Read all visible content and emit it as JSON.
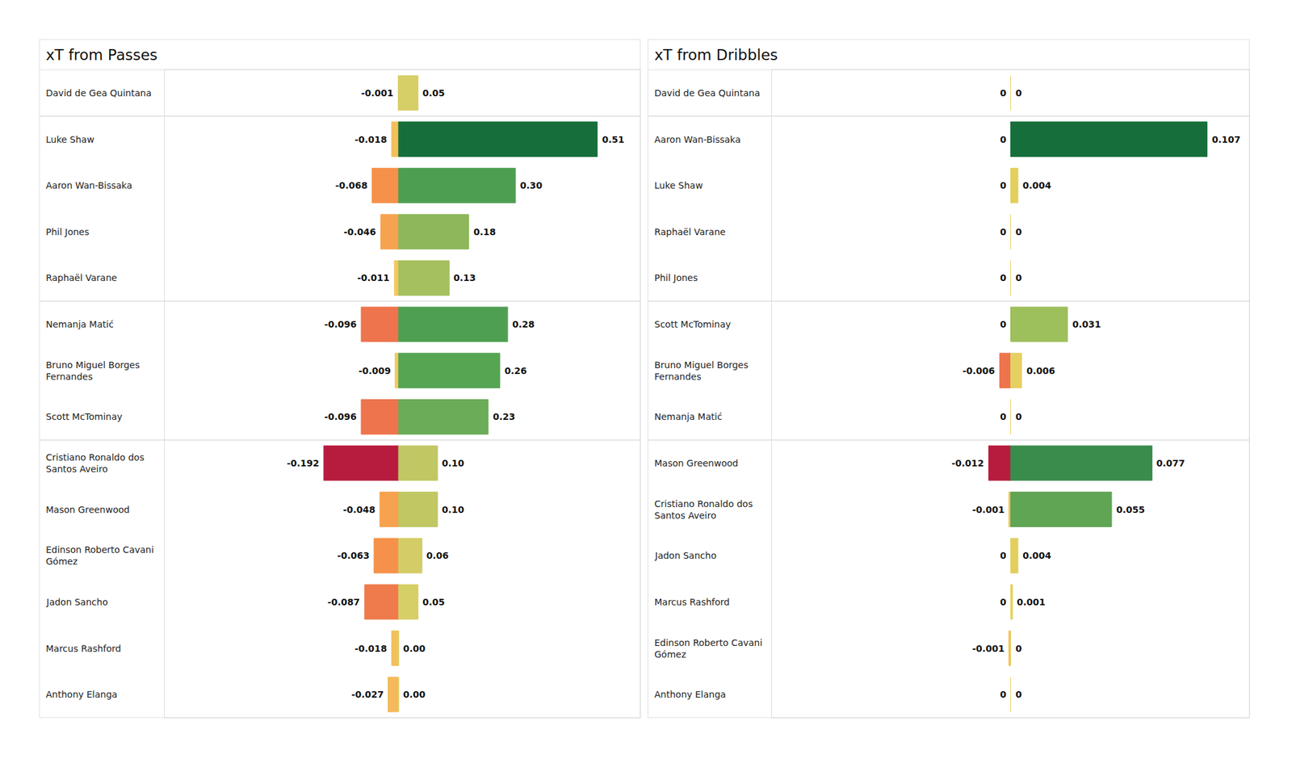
{
  "chart_data": [
    {
      "type": "bar",
      "title": "xT from Passes",
      "orientation": "horizontal",
      "categories": [
        "David de Gea Quintana",
        "Luke Shaw",
        "Aaron Wan-Bissaka",
        "Phil Jones",
        "Raphaël Varane",
        "Nemanja Matić",
        "Bruno Miguel Borges Fernandes",
        "Scott McTominay",
        "Cristiano Ronaldo dos Santos Aveiro",
        "Mason Greenwood",
        "Edinson Roberto Cavani Gómez",
        "Jadon Sancho",
        "Marcus Rashford",
        "Anthony Elanga"
      ],
      "series": [
        {
          "values": [
            -0.001,
            -0.018,
            -0.068,
            -0.046,
            -0.011,
            -0.096,
            -0.009,
            -0.096,
            -0.192,
            -0.048,
            -0.063,
            -0.087,
            -0.018,
            -0.027
          ],
          "value_labels": [
            "-0.001",
            "-0.018",
            "-0.068",
            "-0.046",
            "-0.011",
            "-0.096",
            "-0.009",
            "-0.096",
            "-0.192",
            "-0.048",
            "-0.063",
            "-0.087",
            "-0.018",
            "-0.027"
          ],
          "colors": [
            "#d6ce66",
            "#f2c05a",
            "#f5914a",
            "#f6a24f",
            "#f3c960",
            "#ee744d",
            "#f3c960",
            "#ee744d",
            "#b71c3e",
            "#f6a24f",
            "#f5914a",
            "#ef7a4b",
            "#f2c05a",
            "#f4b95a"
          ]
        },
        {
          "values": [
            0.05,
            0.51,
            0.3,
            0.18,
            0.13,
            0.28,
            0.26,
            0.23,
            0.1,
            0.1,
            0.06,
            0.05,
            0.0,
            0.0
          ],
          "value_labels": [
            "0.05",
            "0.51",
            "0.30",
            "0.18",
            "0.13",
            "0.28",
            "0.26",
            "0.23",
            "0.10",
            "0.10",
            "0.06",
            "0.05",
            "0.00",
            "0.00"
          ],
          "colors": [
            "#d6ce66",
            "#166f3a",
            "#4e9e52",
            "#8db75a",
            "#a5c05e",
            "#4f9f52",
            "#56a553",
            "#6aac57",
            "#c0c763",
            "#c0c763",
            "#d4cc66",
            "#d6ce66",
            "#d9d06a",
            "#d9d06a"
          ]
        }
      ],
      "xlim": [
        -0.6,
        0.62
      ],
      "xticks": [],
      "data_labels": true,
      "tick_labels": "y",
      "grid": false,
      "stacked": false
    },
    {
      "type": "bar",
      "title": "xT from Dribbles",
      "orientation": "horizontal",
      "categories": [
        "David de Gea Quintana",
        "Aaron Wan-Bissaka",
        "Luke Shaw",
        "Raphaël Varane",
        "Phil Jones",
        "Scott McTominay",
        "Bruno Miguel Borges Fernandes",
        "Nemanja Matić",
        "Mason Greenwood",
        "Cristiano Ronaldo dos Santos Aveiro",
        "Jadon Sancho",
        "Marcus Rashford",
        "Edinson Roberto Cavani Gómez",
        "Anthony Elanga"
      ],
      "series": [
        {
          "values": [
            0,
            0,
            0,
            0,
            0,
            0,
            -0.006,
            0,
            -0.012,
            -0.001,
            0,
            0,
            -0.001,
            0
          ],
          "value_labels": [
            "0",
            "0",
            "0",
            "0",
            "0",
            "0",
            "-0.006",
            "0",
            "-0.012",
            "-0.001",
            "0",
            "0",
            "-0.001",
            "0"
          ],
          "colors": [
            "#e8d060",
            "#e8d060",
            "#e8d060",
            "#e8d060",
            "#e8d060",
            "#e8d060",
            "#ee744d",
            "#e8d060",
            "#b71c3e",
            "#f4c25a",
            "#e8d060",
            "#e8d060",
            "#f4c25a",
            "#e8d060"
          ]
        },
        {
          "values": [
            0,
            0.107,
            0.004,
            0,
            0,
            0.031,
            0.006,
            0,
            0.077,
            0.055,
            0.004,
            0.001,
            0,
            0
          ],
          "value_labels": [
            "0",
            "0.107",
            "0.004",
            "0",
            "0",
            "0.031",
            "0.006",
            "0",
            "0.077",
            "0.055",
            "0.004",
            "0.001",
            "0",
            "0"
          ],
          "colors": [
            "#e8d060",
            "#166f3a",
            "#e3cf5e",
            "#e8d060",
            "#e8d060",
            "#9dbf5c",
            "#e6d062",
            "#e8d060",
            "#3a8c4c",
            "#5fa553",
            "#e3cf5e",
            "#e8d060",
            "#e8d060",
            "#e8d060"
          ]
        }
      ],
      "xlim": [
        -0.13,
        0.13
      ],
      "xticks": [],
      "data_labels": true,
      "tick_labels": "y",
      "grid": false,
      "stacked": false
    }
  ]
}
